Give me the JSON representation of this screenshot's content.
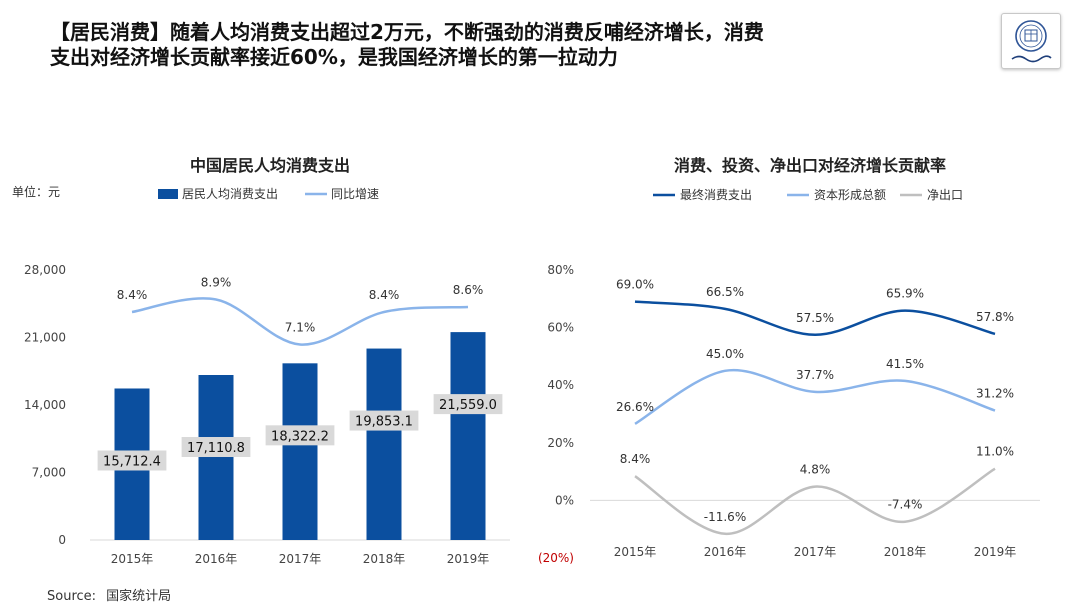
{
  "headline": {
    "line1": "【居民消费】随着人均消费支出超过2万元，不断强劲的消费反哺经济增长，消费",
    "line2": "支出对经济增长贡献率接近60%，是我国经济增长的第一拉动力"
  },
  "logo": {
    "icon": "university-seal-icon"
  },
  "source": {
    "label": "Source:",
    "text": "国家统计局"
  },
  "chart_data": [
    {
      "type": "bar",
      "title": "中国居民人均消费支出",
      "unit_label": "单位：元",
      "categories": [
        "2015年",
        "2016年",
        "2017年",
        "2018年",
        "2019年"
      ],
      "ylim": [
        0,
        28000
      ],
      "yticks": [
        0,
        7000,
        14000,
        21000,
        28000
      ],
      "ytick_labels": [
        "0",
        "7,000",
        "14,000",
        "21,000",
        "28,000"
      ],
      "legend_position": "top",
      "series": [
        {
          "name": "居民人均消费支出",
          "kind": "bar",
          "color": "#0b4f9f",
          "values": [
            15712.4,
            17110.8,
            18322.2,
            19853.1,
            21559.0
          ],
          "labels": [
            "15,712.4",
            "17,110.8",
            "18,322.2",
            "19,853.1",
            "21,559.0"
          ]
        },
        {
          "name": "同比增速",
          "kind": "line",
          "color": "#8ab4ea",
          "axis": "hidden-secondary",
          "values": [
            8.4,
            8.9,
            7.1,
            8.4,
            8.6
          ],
          "labels": [
            "8.4%",
            "8.9%",
            "7.1%",
            "8.4%",
            "8.6%"
          ]
        }
      ]
    },
    {
      "type": "line",
      "title": "消费、投资、净出口对经济增长贡献率",
      "categories": [
        "2015年",
        "2016年",
        "2017年",
        "2018年",
        "2019年"
      ],
      "ylim": [
        -20,
        80
      ],
      "yticks": [
        -20,
        0,
        20,
        40,
        60,
        80
      ],
      "ytick_labels": [
        "(20%)",
        "0%",
        "20%",
        "40%",
        "60%",
        "80%"
      ],
      "negative_tick_color": "#c00000",
      "legend_position": "top",
      "series": [
        {
          "name": "最终消费支出",
          "color": "#0b4f9f",
          "values": [
            69.0,
            66.5,
            57.5,
            65.9,
            57.8
          ],
          "labels": [
            "69.0%",
            "66.5%",
            "57.5%",
            "65.9%",
            "57.8%"
          ]
        },
        {
          "name": "资本形成总额",
          "color": "#8ab4ea",
          "values": [
            26.6,
            45.0,
            37.7,
            41.5,
            31.2
          ],
          "labels": [
            "26.6%",
            "45.0%",
            "37.7%",
            "41.5%",
            "31.2%"
          ]
        },
        {
          "name": "净出口",
          "color": "#bfbfbf",
          "values": [
            8.4,
            -11.6,
            4.8,
            -7.4,
            11.0
          ],
          "labels": [
            "8.4%",
            "-11.6%",
            "4.8%",
            "-7.4%",
            "11.0%"
          ]
        }
      ]
    }
  ]
}
